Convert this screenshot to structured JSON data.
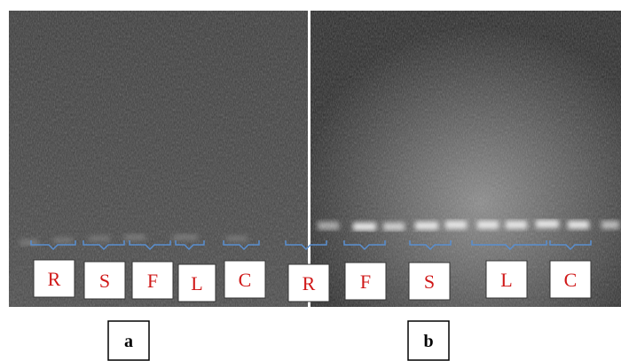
{
  "panels": [
    {
      "label": "a",
      "lanes": [
        "R",
        "S",
        "F",
        "L",
        "C"
      ]
    },
    {
      "label": "b",
      "lanes": [
        "R",
        "F",
        "S",
        "L",
        "C"
      ]
    }
  ]
}
